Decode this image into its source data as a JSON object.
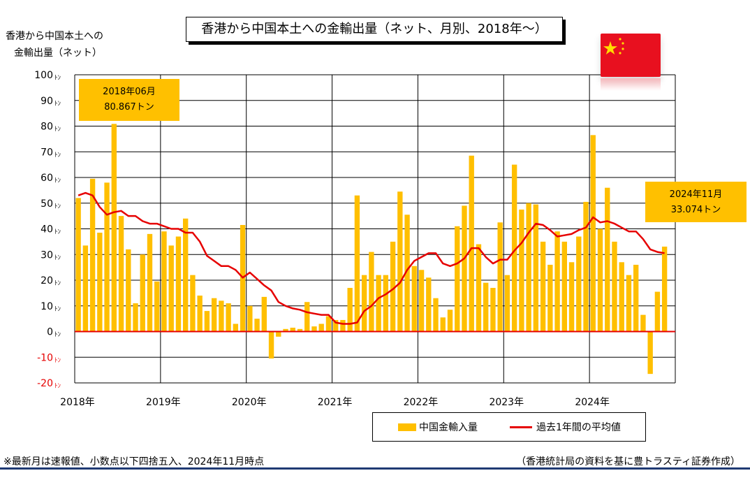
{
  "title": "香港から中国本土への金輸出量（ネット、月別、2018年〜）",
  "y_axis_title": [
    "香港から中国本土への",
    "金輸出量（ネット）"
  ],
  "unit_suffix": "ﾄﾝ",
  "callouts": [
    {
      "date": "2018年06月",
      "value": "80.867トン"
    },
    {
      "date": "2024年11月",
      "value": "33.074トン"
    }
  ],
  "legend": {
    "bar_label": "中国金輸入量",
    "line_label": "過去1年間の平均値"
  },
  "footnote": "※最新月は速報値、小数点以下四捨五入、2024年11月時点",
  "source": "（香港統計局の資料を基に豊トラスティ証券作成）",
  "flag": {
    "name": "china-flag-icon",
    "color": "#e8101f",
    "star_color": "#ffde00"
  },
  "colors": {
    "bar": "#ffbf00",
    "line": "#e60000",
    "negative_tick": "#e60000",
    "zero_line": "#e60000",
    "grid": "#000000"
  },
  "chart_data": {
    "type": "bar",
    "ylim": [
      -20,
      100
    ],
    "y_ticks": [
      100,
      90,
      80,
      70,
      60,
      50,
      40,
      30,
      20,
      10,
      0,
      -10,
      -20
    ],
    "x_tick_labels": [
      "2018年",
      "2019年",
      "2020年",
      "2021年",
      "2022年",
      "2023年",
      "2024年"
    ],
    "grid": true,
    "legend_position": "bottom-right",
    "series": [
      {
        "name": "中国金輸入量",
        "type": "bar",
        "values": [
          52,
          33.5,
          59.5,
          38.5,
          58,
          80.867,
          45,
          32,
          11,
          30,
          38,
          19.5,
          39,
          33.5,
          37,
          44,
          22,
          14,
          8,
          13,
          12,
          11,
          3,
          41.5,
          10,
          5,
          13.5,
          -10.5,
          -2,
          1,
          1.5,
          1,
          11.5,
          2,
          3,
          6,
          4.5,
          4.5,
          17,
          53,
          22,
          31,
          22,
          22,
          35,
          54.5,
          45.5,
          25.5,
          24,
          21,
          13,
          5.5,
          8.5,
          41,
          49,
          68.5,
          34,
          19,
          17,
          42.5,
          22,
          65,
          47.5,
          50,
          49.5,
          35,
          26,
          39,
          35,
          27,
          37,
          50.5,
          76.5,
          40,
          56,
          35,
          27,
          22,
          26,
          6.5,
          -16.5,
          15.5,
          33.074
        ]
      },
      {
        "name": "過去1年間の平均値",
        "type": "line",
        "values": [
          53,
          54,
          53,
          48.5,
          45.5,
          46.5,
          47,
          45,
          45,
          43,
          42,
          42,
          41,
          40,
          40,
          38.5,
          38.5,
          35,
          29.5,
          27.5,
          25.5,
          25.5,
          24,
          21,
          23,
          20.5,
          18,
          16,
          11.5,
          10,
          9,
          8.5,
          7.5,
          7,
          6.5,
          6.5,
          3.5,
          3,
          3,
          3.5,
          8,
          10,
          13,
          14.5,
          16.5,
          19,
          24,
          27.5,
          29,
          30.5,
          30.5,
          26.5,
          25.5,
          26.5,
          28.5,
          32.5,
          32.5,
          29,
          26.5,
          28,
          28,
          31.5,
          34.5,
          38.5,
          42,
          41.5,
          39.5,
          37,
          37.5,
          38,
          39.5,
          40.5,
          44.5,
          42.5,
          43,
          42,
          40.5,
          39,
          39,
          36,
          32,
          31,
          30.5
        ]
      }
    ]
  }
}
